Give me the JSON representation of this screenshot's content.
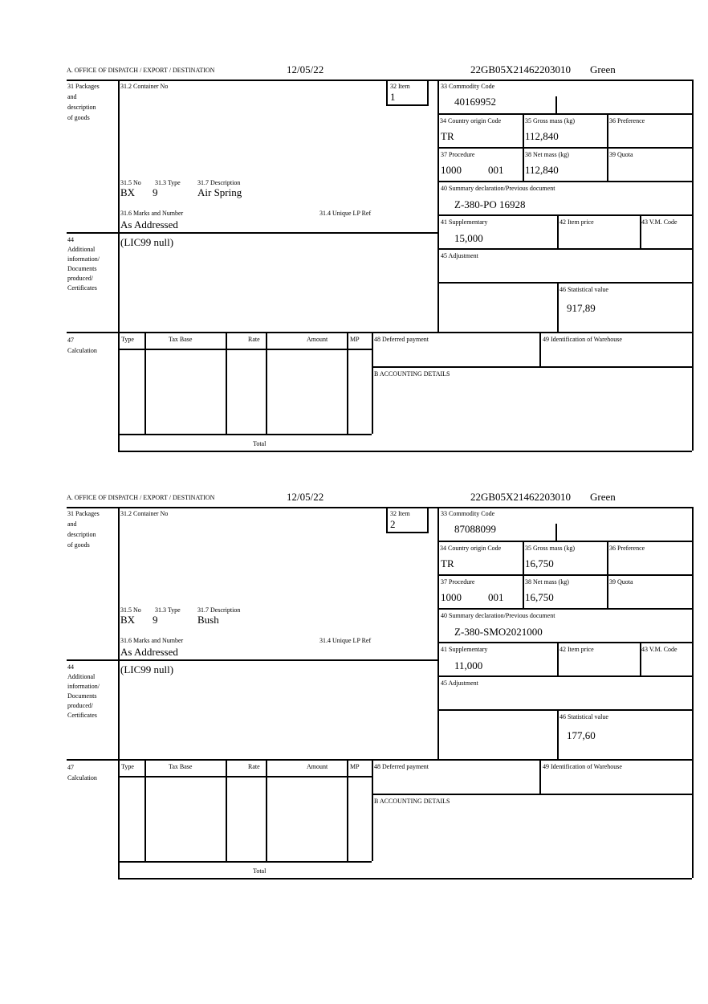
{
  "labels": {
    "office": "A. OFFICE OF DISPATCH / EXPORT / DESTINATION",
    "packages": [
      "31 Packages",
      "and",
      "description",
      "of goods"
    ],
    "container_no": "31.2 Container No",
    "item": "32 Item",
    "commodity_code": "33 Commodity Code",
    "country_origin": "34 Country origin Code",
    "gross_mass": "35 Gross mass (kg)",
    "preference": "36 Preference",
    "procedure": "37 Procedure",
    "net_mass": "38 Net mass (kg)",
    "quota": "39 Quota",
    "summary_decl": "40 Summary declaration/Previous document",
    "supplementary": "41 Supplementary",
    "item_price": "42 Item price",
    "vm_code": "43 V.M. Code",
    "adjustment": "45 Adjustment",
    "statistical_value": "46 Statistical value",
    "no": "31.5 No",
    "type": "31.3 Type",
    "description": "31.7 Description",
    "marks": "31.6 Marks and Number",
    "unique_lp": "31.4 Unique LP Ref",
    "additional": [
      "44",
      "Additional",
      "information/",
      "Documents",
      "produced/",
      "Certificates"
    ],
    "calculation": [
      "47",
      "Calculation"
    ],
    "calc_cols": [
      "Type",
      "Tax Base",
      "Rate",
      "Amount",
      "MP"
    ],
    "total": "Total",
    "deferred_payment": "48 Deferred payment",
    "warehouse": "49 Identification of Warehouse",
    "accounting": "B ACCOUNTING DETAILS"
  },
  "items": [
    {
      "date": "12/05/22",
      "reference": "22GB05X21462203010",
      "route": "Green",
      "item_no": "1",
      "commodity_code": "40169952",
      "country_origin": "TR",
      "gross_mass": "112,840",
      "procedure": "1000",
      "procedure_code": "001",
      "net_mass": "112,840",
      "summary_decl": "Z-380-PO 16928",
      "supplementary": "15,000",
      "statistical_value": "917,89",
      "pkg_no": "BX",
      "pkg_type": "9",
      "description": "Air Spring",
      "marks": "As Addressed",
      "additional_info": "(LIC99 null)"
    },
    {
      "date": "12/05/22",
      "reference": "22GB05X21462203010",
      "route": "Green",
      "item_no": "2",
      "commodity_code": "87088099",
      "country_origin": "TR",
      "gross_mass": "16,750",
      "procedure": "1000",
      "procedure_code": "001",
      "net_mass": "16,750",
      "summary_decl": "Z-380-SMO2021000",
      "supplementary": "11,000",
      "statistical_value": "177,60",
      "pkg_no": "BX",
      "pkg_type": "9",
      "description": "Bush",
      "marks": "As Addressed",
      "additional_info": "(LIC99 null)"
    }
  ]
}
